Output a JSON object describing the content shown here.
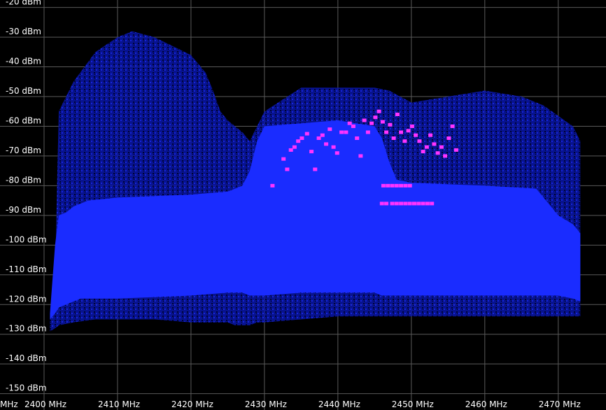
{
  "chart_data": {
    "type": "scatter",
    "title": "",
    "xlabel": "",
    "ylabel": "",
    "xlim": [
      2394,
      2476.5
    ],
    "ylim": [
      -155.5,
      -17.5
    ],
    "x_ticks": [
      2400,
      2410,
      2420,
      2430,
      2440,
      2450,
      2460,
      2470
    ],
    "x_tick_labels": [
      "2400 MHz",
      "2410 MHz",
      "2420 MHz",
      "2430 MHz",
      "2440 MHz",
      "2450 MHz",
      "2460 MHz",
      "2470 MHz"
    ],
    "x_edge_label": "MHz",
    "y_ticks": [
      -20,
      -30,
      -40,
      -50,
      -60,
      -70,
      -80,
      -90,
      -100,
      -110,
      -120,
      -130,
      -140,
      -150
    ],
    "y_tick_labels": [
      "-20 dBm",
      "-30 dBm",
      "-40 dBm",
      "-50 dBm",
      "-60 dBm",
      "-70 dBm",
      "-80 dBm",
      "-90 dBm",
      "-100 dBm",
      "-110 dBm",
      "-120 dBm",
      "-130 dBm",
      "-140 dBm",
      "-150 dBm"
    ],
    "grid": true,
    "colors": {
      "background": "#000000",
      "grid": "#5a5a5a",
      "axis_text": "#ffffff",
      "density": "#1a2cff",
      "density_sparse": "#0a16a8",
      "peaks": "#ff33ff"
    },
    "density_envelope": {
      "x": [
        2400.8,
        2401.5,
        2402,
        2403,
        2404,
        2405,
        2406,
        2410,
        2420,
        2425,
        2427,
        2428,
        2429,
        2430,
        2435,
        2440,
        2445,
        2446,
        2447,
        2448,
        2450,
        2460,
        2467,
        2468,
        2469,
        2470,
        2472,
        2473
      ],
      "top": [
        -123,
        -100,
        -90,
        -89,
        -87,
        -86,
        -85,
        -84,
        -83,
        -82,
        -80,
        -75,
        -65,
        -60,
        -59,
        -58,
        -60,
        -64,
        -72,
        -78,
        -79,
        -80,
        -81,
        -84,
        -87,
        -90,
        -93,
        -96
      ],
      "bottom": [
        -125,
        -123,
        -121,
        -120,
        -119,
        -118,
        -118,
        -118,
        -117,
        -116,
        -116,
        -117,
        -117,
        -117,
        -116,
        -116,
        -116,
        -117,
        -117,
        -117,
        -117,
        -117,
        -117,
        -117,
        -117,
        -117,
        -118,
        -119
      ]
    },
    "sparse_envelope": {
      "x": [
        2400.8,
        2401.5,
        2402,
        2404,
        2407,
        2410,
        2412,
        2415,
        2420,
        2422,
        2423,
        2424,
        2425,
        2426,
        2427,
        2428,
        2429,
        2430,
        2435,
        2440,
        2445,
        2447,
        2450,
        2455,
        2460,
        2465,
        2468,
        2472,
        2473
      ],
      "top": [
        -125,
        -110,
        -55,
        -45,
        -35,
        -30,
        -28,
        -30,
        -36,
        -42,
        -48,
        -55,
        -58,
        -60,
        -62,
        -65,
        -60,
        -55,
        -47,
        -47,
        -47,
        -48,
        -52,
        -50,
        -48,
        -50,
        -53,
        -60,
        -65
      ],
      "bottom": [
        -129,
        -128,
        -127,
        -126,
        -125,
        -125,
        -125,
        -125,
        -126,
        -126,
        -126,
        -126,
        -126,
        -127,
        -127,
        -127,
        -126,
        -126,
        -125,
        -124,
        -124,
        -124,
        -124,
        -124,
        -124,
        -124,
        -124,
        -124,
        -124
      ]
    },
    "series": [
      {
        "values": [
          {
            "x": 2431.1,
            "y": -80
          },
          {
            "x": 2432.6,
            "y": -71
          },
          {
            "x": 2433.1,
            "y": -74.5
          },
          {
            "x": 2433.6,
            "y": -68
          },
          {
            "x": 2434.1,
            "y": -67
          },
          {
            "x": 2434.6,
            "y": -65
          },
          {
            "x": 2435.1,
            "y": -64
          },
          {
            "x": 2435.8,
            "y": -62.5
          },
          {
            "x": 2436.4,
            "y": -68.5
          },
          {
            "x": 2436.9,
            "y": -74.5
          },
          {
            "x": 2437.4,
            "y": -64
          },
          {
            "x": 2437.9,
            "y": -63
          },
          {
            "x": 2438.4,
            "y": -66
          },
          {
            "x": 2438.9,
            "y": -61
          },
          {
            "x": 2439.4,
            "y": -67
          },
          {
            "x": 2439.9,
            "y": -69
          },
          {
            "x": 2440.5,
            "y": -62
          },
          {
            "x": 2441.1,
            "y": -62
          },
          {
            "x": 2441.6,
            "y": -59
          },
          {
            "x": 2442.1,
            "y": -60
          },
          {
            "x": 2442.6,
            "y": -64
          },
          {
            "x": 2443.1,
            "y": -70
          },
          {
            "x": 2443.6,
            "y": -58
          },
          {
            "x": 2444.1,
            "y": -62
          },
          {
            "x": 2444.6,
            "y": -59
          },
          {
            "x": 2445.1,
            "y": -57
          },
          {
            "x": 2445.6,
            "y": -55
          },
          {
            "x": 2446.1,
            "y": -58.5
          },
          {
            "x": 2446.6,
            "y": -62
          },
          {
            "x": 2447.1,
            "y": -59.5
          },
          {
            "x": 2447.6,
            "y": -64
          },
          {
            "x": 2448.1,
            "y": -56
          },
          {
            "x": 2448.6,
            "y": -62
          },
          {
            "x": 2449.1,
            "y": -65
          },
          {
            "x": 2449.6,
            "y": -61.5
          },
          {
            "x": 2450.1,
            "y": -60
          },
          {
            "x": 2450.6,
            "y": -63
          },
          {
            "x": 2451.1,
            "y": -65
          },
          {
            "x": 2451.6,
            "y": -68.5
          },
          {
            "x": 2452.1,
            "y": -67
          },
          {
            "x": 2452.6,
            "y": -63
          },
          {
            "x": 2453.1,
            "y": -66
          },
          {
            "x": 2453.6,
            "y": -69
          },
          {
            "x": 2454.1,
            "y": -67
          },
          {
            "x": 2454.6,
            "y": -70
          },
          {
            "x": 2455.1,
            "y": -64
          },
          {
            "x": 2455.6,
            "y": -60
          },
          {
            "x": 2456.1,
            "y": -68
          },
          {
            "x": 2446.2,
            "y": -80
          },
          {
            "x": 2446.8,
            "y": -80
          },
          {
            "x": 2447.4,
            "y": -80
          },
          {
            "x": 2448.0,
            "y": -80
          },
          {
            "x": 2448.6,
            "y": -80
          },
          {
            "x": 2449.2,
            "y": -80
          },
          {
            "x": 2449.8,
            "y": -80
          },
          {
            "x": 2446.0,
            "y": -86
          },
          {
            "x": 2446.6,
            "y": -86
          },
          {
            "x": 2447.4,
            "y": -86
          },
          {
            "x": 2448.0,
            "y": -86
          },
          {
            "x": 2448.6,
            "y": -86
          },
          {
            "x": 2449.2,
            "y": -86
          },
          {
            "x": 2449.8,
            "y": -86
          },
          {
            "x": 2450.4,
            "y": -86
          },
          {
            "x": 2451.0,
            "y": -86
          },
          {
            "x": 2451.6,
            "y": -86
          },
          {
            "x": 2452.2,
            "y": -86
          },
          {
            "x": 2452.8,
            "y": -86
          }
        ]
      }
    ]
  }
}
